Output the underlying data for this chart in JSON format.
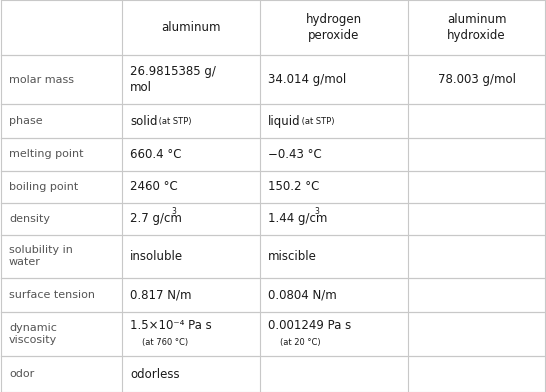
{
  "col_headers": [
    "",
    "aluminum",
    "hydrogen\nperoxide",
    "aluminum\nhydroxide"
  ],
  "rows": [
    {
      "label": "molar mass",
      "cells": [
        {
          "lines": [
            {
              "text": "26.9815385 g/",
              "fs": 8.5
            },
            {
              "text": "mol",
              "fs": 8.5
            }
          ]
        },
        {
          "lines": [
            {
              "text": "34.014 g/mol",
              "fs": 8.5
            }
          ]
        },
        {
          "lines": [
            {
              "text": "78.003 g/mol",
              "fs": 8.5
            }
          ],
          "align": "center"
        }
      ]
    },
    {
      "label": "phase",
      "cells": [
        {
          "phase": true,
          "main": "solid",
          "sub": " (at STP)"
        },
        {
          "phase": true,
          "main": "liquid",
          "sub": " (at STP)"
        },
        {
          "lines": []
        }
      ]
    },
    {
      "label": "melting point",
      "cells": [
        {
          "lines": [
            {
              "text": "660.4 °C",
              "fs": 8.5
            }
          ]
        },
        {
          "lines": [
            {
              "text": "−0.43 °C",
              "fs": 8.5
            }
          ]
        },
        {
          "lines": []
        }
      ]
    },
    {
      "label": "boiling point",
      "cells": [
        {
          "lines": [
            {
              "text": "2460 °C",
              "fs": 8.5
            }
          ]
        },
        {
          "lines": [
            {
              "text": "150.2 °C",
              "fs": 8.5
            }
          ]
        },
        {
          "lines": []
        }
      ]
    },
    {
      "label": "density",
      "cells": [
        {
          "density": true,
          "main": "2.7 g/cm",
          "sup": "3"
        },
        {
          "density": true,
          "main": "1.44 g/cm",
          "sup": "3"
        },
        {
          "lines": []
        }
      ]
    },
    {
      "label": "solubility in\nwater",
      "cells": [
        {
          "lines": [
            {
              "text": "insoluble",
              "fs": 8.5
            }
          ]
        },
        {
          "lines": [
            {
              "text": "miscible",
              "fs": 8.5
            }
          ]
        },
        {
          "lines": []
        }
      ]
    },
    {
      "label": "surface tension",
      "cells": [
        {
          "lines": [
            {
              "text": "0.817 N/m",
              "fs": 8.5
            }
          ]
        },
        {
          "lines": [
            {
              "text": "0.0804 N/m",
              "fs": 8.5
            }
          ]
        },
        {
          "lines": []
        }
      ]
    },
    {
      "label": "dynamic\nviscosity",
      "cells": [
        {
          "viscosity": true,
          "main": "1.5×10⁻⁴ Pa s",
          "sub": "(at 760 °C)"
        },
        {
          "viscosity": true,
          "main": "0.001249 Pa s",
          "sub": "(at 20 °C)"
        },
        {
          "lines": []
        }
      ]
    },
    {
      "label": "odor",
      "cells": [
        {
          "lines": [
            {
              "text": "odorless",
              "fs": 8.5
            }
          ]
        },
        {
          "lines": []
        },
        {
          "lines": []
        }
      ]
    }
  ],
  "bg_color": "#ffffff",
  "grid_color": "#c8c8c8",
  "text_color": "#1a1a1a",
  "label_color": "#555555"
}
